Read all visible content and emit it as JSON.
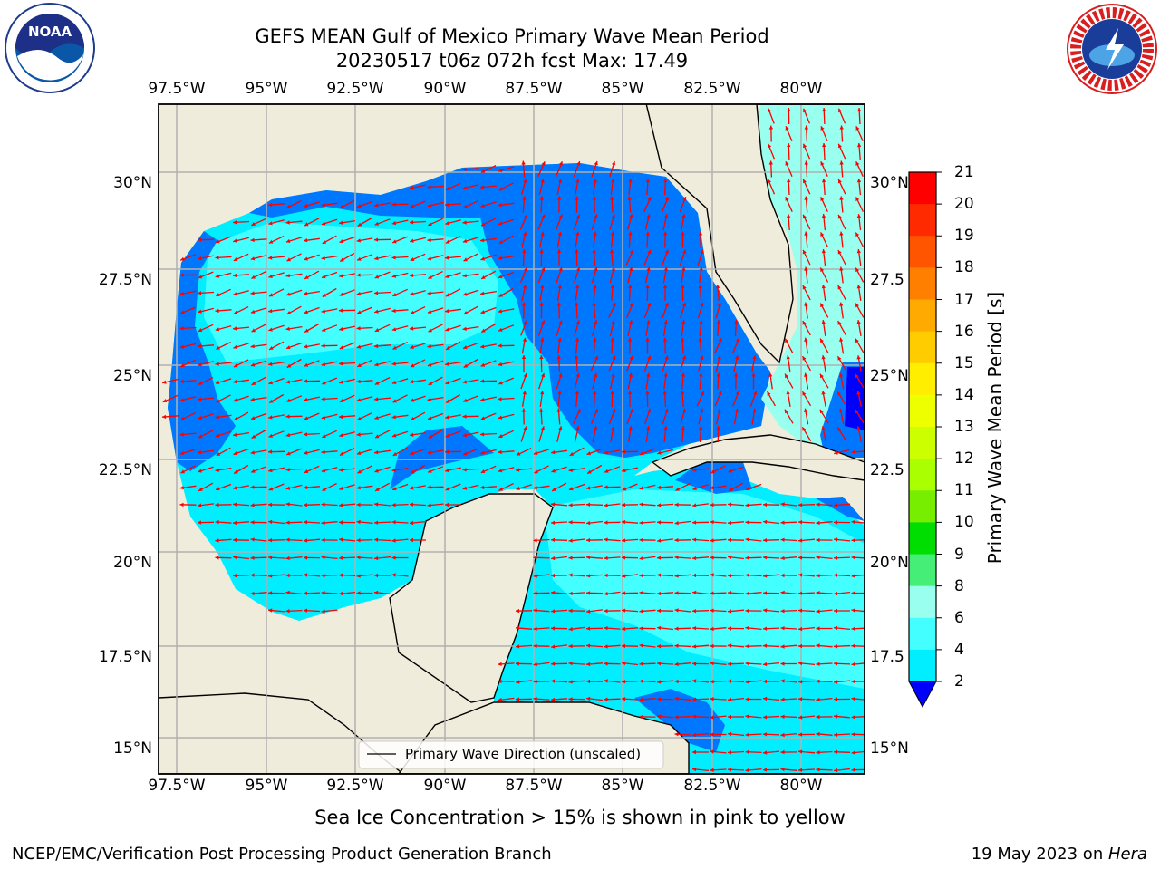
{
  "title": {
    "line1": "GEFS MEAN Gulf of Mexico Primary Wave Mean Period",
    "line2": "20230517 t06z 072h fcst   Max: 17.49"
  },
  "map": {
    "lon_labels": [
      "97.5°W",
      "95°W",
      "92.5°W",
      "90°W",
      "87.5°W",
      "85°W",
      "82.5°W",
      "80°W"
    ],
    "lat_labels": [
      "30°N",
      "27.5°N",
      "25°N",
      "22.5°N",
      "20°N",
      "17.5°N",
      "15°N"
    ],
    "lat_labels_right": [
      "30°N",
      "27.5",
      "25°N",
      "22.5",
      "20°N",
      "17.5",
      "15°N"
    ],
    "legend_text": "Primary Wave Direction (unscaled)",
    "arrow_color": "#ff0000",
    "land_color": "#efecdc"
  },
  "colorbar": {
    "label": "Primary Wave Mean Period [s]",
    "ticks": [
      "21",
      "20",
      "19",
      "18",
      "17",
      "16",
      "15",
      "14",
      "13",
      "12",
      "11",
      "10",
      "9",
      "8",
      "6",
      "4",
      "2"
    ],
    "colors": [
      "#ff0000",
      "#ff2a00",
      "#ff5500",
      "#ff8000",
      "#ffaa00",
      "#ffcc00",
      "#ffee00",
      "#eeff00",
      "#ccff00",
      "#aaff00",
      "#77ee00",
      "#00dd00",
      "#44ee77",
      "#99ffee",
      "#44ffff",
      "#00eeff",
      "#0077ff"
    ],
    "under_color": "#0000ff"
  },
  "note": "Sea Ice Concentration > 15% is shown in pink to yellow",
  "footer": {
    "left": "NCEP/EMC/Verification Post Processing Product Generation Branch",
    "right_date": "19 May 2023 on ",
    "right_host": "Hera"
  },
  "logos": {
    "noaa": "NOAA",
    "noaa_ring": "NATIONAL OCEANIC AND ATMOSPHERIC ADMINISTRATION · U.S. DEPARTMENT OF COMMERCE",
    "nws_ring": "NATIONAL WEATHER SERVICE"
  }
}
